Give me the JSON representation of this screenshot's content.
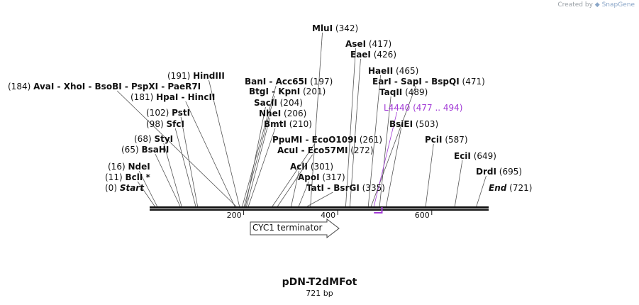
{
  "credit": {
    "prefix": "Created by",
    "brand": "SnapGene"
  },
  "plasmid": {
    "name": "pDN-T2dMFot",
    "length_bp": 721,
    "size_label": "721 bp"
  },
  "axis": {
    "ticks": [
      200,
      400,
      600
    ]
  },
  "sites": [
    {
      "id": "start",
      "text": "Start",
      "pos": "(0)",
      "bp": 0,
      "side": "left",
      "kind": "end"
    },
    {
      "id": "bcli",
      "text": "BclI *",
      "pos": "(11)",
      "bp": 11,
      "side": "left"
    },
    {
      "id": "ndei",
      "text": "NdeI",
      "pos": "(16)",
      "bp": 16,
      "side": "left"
    },
    {
      "id": "bsahi",
      "text": "BsaHI",
      "pos": "(65)",
      "bp": 65,
      "side": "left"
    },
    {
      "id": "styi",
      "text": "StyI",
      "pos": "(68)",
      "bp": 68,
      "side": "left"
    },
    {
      "id": "sfci",
      "text": "SfcI",
      "pos": "(98)",
      "bp": 98,
      "side": "left"
    },
    {
      "id": "psti",
      "text": "PstI",
      "pos": "(102)",
      "bp": 102,
      "side": "left"
    },
    {
      "id": "hpai",
      "text": "HpaI  - HincII",
      "pos": "(181)",
      "bp": 181,
      "side": "left"
    },
    {
      "id": "avai",
      "text": "AvaI  - XhoI  - BsoBI  - PspXI  - PaeR7I",
      "pos": "(184)",
      "bp": 184,
      "side": "left"
    },
    {
      "id": "hindiii",
      "text": "HindIII",
      "pos": "(191)",
      "bp": 191,
      "side": "left"
    },
    {
      "id": "bani",
      "text": "BanI  - Acc65I",
      "pos": "(197)",
      "bp": 197,
      "side": "right"
    },
    {
      "id": "btgi",
      "text": "BtgI  - KpnI",
      "pos": "(201)",
      "bp": 201,
      "side": "right"
    },
    {
      "id": "sacii",
      "text": "SacII",
      "pos": "(204)",
      "bp": 204,
      "side": "right"
    },
    {
      "id": "nhei",
      "text": "NheI",
      "pos": "(206)",
      "bp": 206,
      "side": "right"
    },
    {
      "id": "bmti",
      "text": "BmtI",
      "pos": "(210)",
      "bp": 210,
      "side": "right"
    },
    {
      "id": "ppumi",
      "text": "PpuMI  - EcoO109I",
      "pos": "(261)",
      "bp": 261,
      "side": "right"
    },
    {
      "id": "acui",
      "text": "AcuI  - Eco57MI",
      "pos": "(272)",
      "bp": 272,
      "side": "right"
    },
    {
      "id": "acli",
      "text": "AclI",
      "pos": "(301)",
      "bp": 301,
      "side": "right"
    },
    {
      "id": "apoi",
      "text": "ApoI",
      "pos": "(317)",
      "bp": 317,
      "side": "right"
    },
    {
      "id": "tati",
      "text": "TatI  - BsrGI",
      "pos": "(335)",
      "bp": 335,
      "side": "right"
    },
    {
      "id": "mlui",
      "text": "MluI",
      "pos": "(342)",
      "bp": 342,
      "side": "right"
    },
    {
      "id": "asei",
      "text": "AseI",
      "pos": "(417)",
      "bp": 417,
      "side": "right"
    },
    {
      "id": "eaei",
      "text": "EaeI",
      "pos": "(426)",
      "bp": 426,
      "side": "right"
    },
    {
      "id": "haeii",
      "text": "HaeII",
      "pos": "(465)",
      "bp": 465,
      "side": "right"
    },
    {
      "id": "eari",
      "text": "EarI  - SapI  - BspQI",
      "pos": "(471)",
      "bp": 471,
      "side": "right"
    },
    {
      "id": "taqii",
      "text": "TaqII",
      "pos": "(489)",
      "bp": 489,
      "side": "right"
    },
    {
      "id": "l4440",
      "text": "L4440",
      "pos": "(477 .. 494)",
      "bp": 477,
      "side": "right",
      "kind": "primer"
    },
    {
      "id": "bsiei",
      "text": "BsiEI",
      "pos": "(503)",
      "bp": 503,
      "side": "right"
    },
    {
      "id": "pcli",
      "text": "PciI",
      "pos": "(587)",
      "bp": 587,
      "side": "right"
    },
    {
      "id": "ecii",
      "text": "EciI",
      "pos": "(649)",
      "bp": 649,
      "side": "right"
    },
    {
      "id": "drdi",
      "text": "DrdI",
      "pos": "(695)",
      "bp": 695,
      "side": "right"
    },
    {
      "id": "end",
      "text": "End",
      "pos": "(721)",
      "bp": 721,
      "side": "right",
      "kind": "end"
    }
  ],
  "primer": {
    "name": "L4440",
    "start_bp": 477,
    "end_bp": 494
  },
  "features": [
    {
      "label": "CYC1 terminator",
      "start_bp": 216,
      "end_bp": 405,
      "direction": "forward"
    }
  ],
  "colors": {
    "ink": "#111111",
    "primer": "#a23bd6",
    "line": "#555555",
    "credit": "#9aa0a6"
  }
}
